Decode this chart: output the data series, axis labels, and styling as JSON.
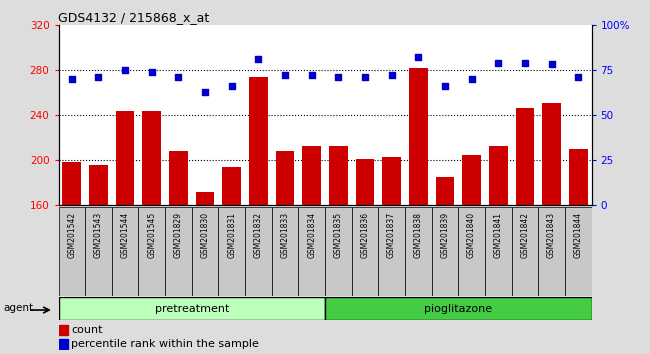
{
  "title": "GDS4132 / 215868_x_at",
  "categories": [
    "GSM201542",
    "GSM201543",
    "GSM201544",
    "GSM201545",
    "GSM201829",
    "GSM201830",
    "GSM201831",
    "GSM201832",
    "GSM201833",
    "GSM201834",
    "GSM201835",
    "GSM201836",
    "GSM201837",
    "GSM201838",
    "GSM201839",
    "GSM201840",
    "GSM201841",
    "GSM201842",
    "GSM201843",
    "GSM201844"
  ],
  "bar_values": [
    198,
    196,
    244,
    244,
    208,
    172,
    194,
    274,
    208,
    213,
    213,
    201,
    203,
    282,
    185,
    205,
    213,
    246,
    251,
    210
  ],
  "dot_values": [
    70,
    71,
    75,
    74,
    71,
    63,
    66,
    81,
    72,
    72,
    71,
    71,
    72,
    82,
    66,
    70,
    79,
    79,
    78,
    71
  ],
  "bar_color": "#cc0000",
  "dot_color": "#0000cc",
  "ylim_left": [
    160,
    320
  ],
  "ylim_right": [
    0,
    100
  ],
  "yticks_left": [
    160,
    200,
    240,
    280,
    320
  ],
  "yticks_right": [
    0,
    25,
    50,
    75,
    100
  ],
  "ytick_labels_right": [
    "0",
    "25",
    "50",
    "75",
    "100%"
  ],
  "hlines": [
    200,
    240,
    280
  ],
  "group_bar_label": "pretreatment",
  "group_bar_label2": "pioglitazone",
  "group_color1": "#bbffbb",
  "group_color2": "#44cc44",
  "agent_label": "agent",
  "legend_bar_label": "count",
  "legend_dot_label": "percentile rank within the sample",
  "fig_bg_color": "#dddddd",
  "plot_bg_color": "#ffffff",
  "tick_bg_color": "#c8c8c8"
}
